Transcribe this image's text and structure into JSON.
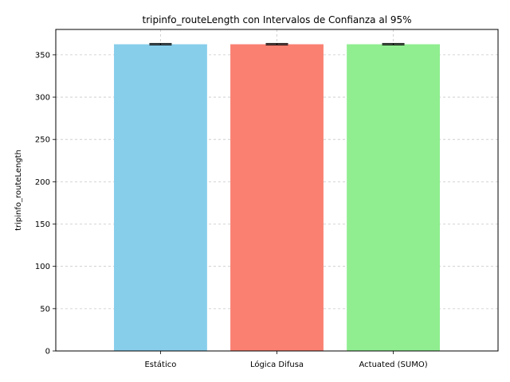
{
  "chart_data": {
    "type": "bar",
    "title": "tripinfo_routeLength con Intervalos de Confianza al 95%",
    "xlabel": "",
    "ylabel": "tripinfo_routeLength",
    "categories": [
      "Estático",
      "Lógica Difusa",
      "Actuated (SUMO)"
    ],
    "values": [
      362.5,
      362.5,
      362.5
    ],
    "error": [
      0.8,
      0.8,
      0.8
    ],
    "colors": [
      "#87CEEB",
      "#FA8072",
      "#90EE90"
    ],
    "ylim": [
      0,
      380
    ],
    "yticks": [
      0,
      50,
      100,
      150,
      200,
      250,
      300,
      350
    ],
    "grid": true
  }
}
